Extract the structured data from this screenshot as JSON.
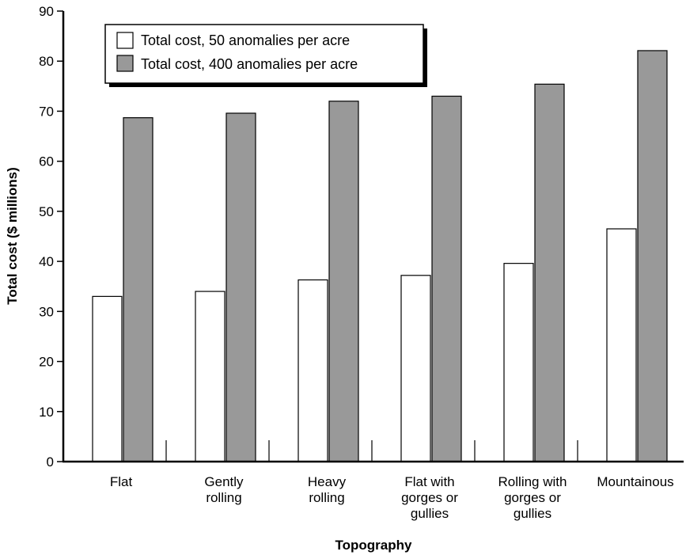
{
  "chart_data": {
    "type": "bar",
    "title": "",
    "xlabel": "Topography",
    "ylabel": "Total cost ($ millions)",
    "ylim": [
      0,
      90
    ],
    "yticks": [
      0,
      10,
      20,
      30,
      40,
      50,
      60,
      70,
      80,
      90
    ],
    "grid": false,
    "legend_position": "top-left",
    "categories": [
      [
        "Flat"
      ],
      [
        "Gently",
        "rolling"
      ],
      [
        "Heavy",
        "rolling"
      ],
      [
        "Flat with",
        "gorges or",
        "gullies"
      ],
      [
        "Rolling with",
        "gorges or",
        "gullies"
      ],
      [
        "Mountainous"
      ]
    ],
    "series": [
      {
        "name": "Total cost, 50 anomalies per acre",
        "color": "#ffffff",
        "values": [
          33.0,
          34.0,
          36.3,
          37.2,
          39.6,
          46.5
        ]
      },
      {
        "name": "Total cost, 400 anomalies per acre",
        "color": "#999999",
        "values": [
          68.7,
          69.6,
          72.0,
          73.0,
          75.4,
          82.1
        ]
      }
    ]
  }
}
